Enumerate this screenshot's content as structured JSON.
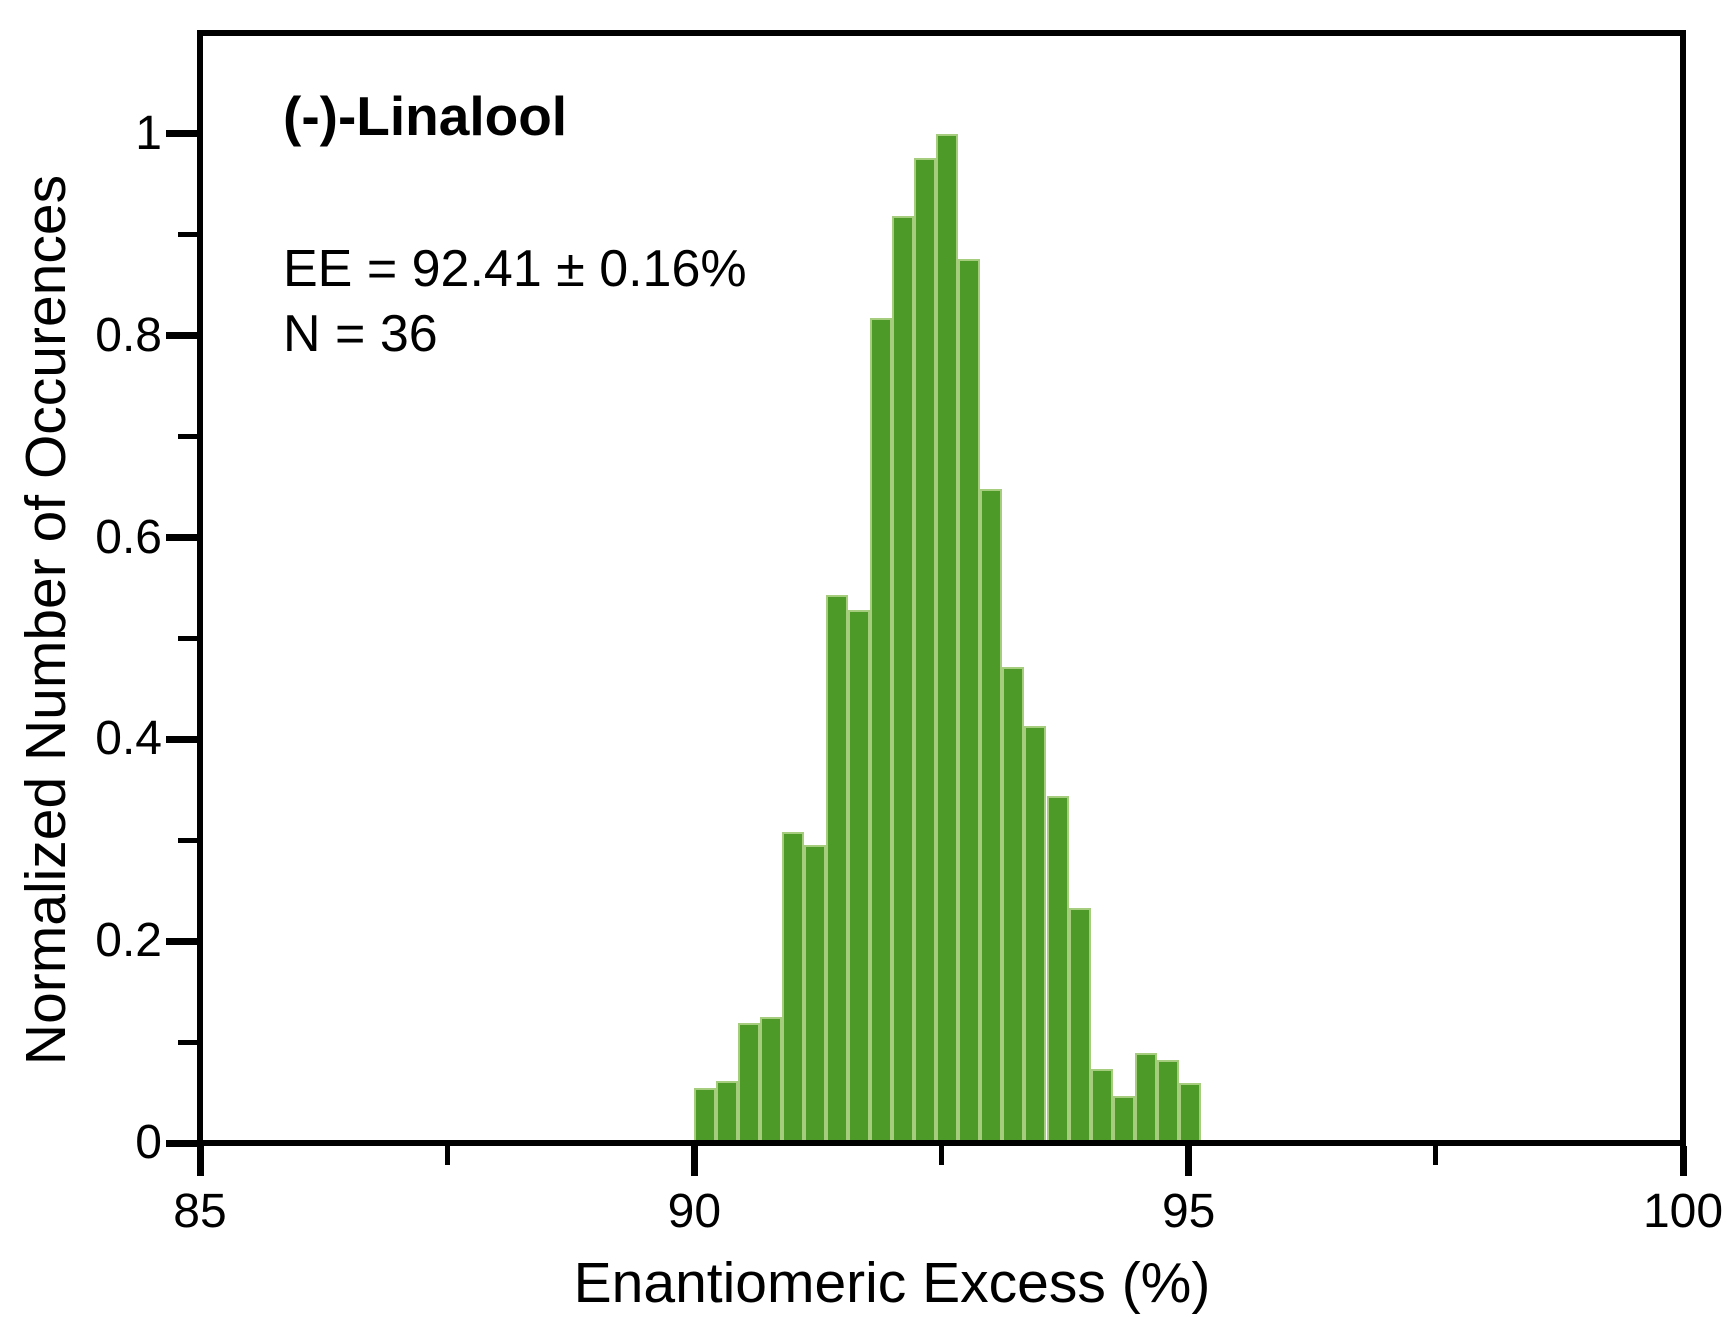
{
  "chart_data": {
    "type": "bar",
    "title": "(-)-Linalool",
    "annotation": {
      "ee_line": "EE = 92.41 ± 0.16%",
      "n_line": "N = 36"
    },
    "xlabel": "Enantiomeric Excess (%)",
    "ylabel": "Normalized Number of Occurences",
    "xlim": [
      85,
      100
    ],
    "ylim": [
      0,
      1.1
    ],
    "x_major_ticks": [
      85,
      90,
      95,
      100
    ],
    "x_minor_ticks": [
      87.5,
      92.5,
      97.5
    ],
    "y_major_ticks": [
      0,
      0.2,
      0.4,
      0.6,
      0.8,
      1
    ],
    "y_minor_ticks": [
      0.1,
      0.3,
      0.5,
      0.7,
      0.9
    ],
    "grid": false,
    "legend": "none",
    "histogram": {
      "n_bins": 23,
      "bin_start": 90.0,
      "bin_width": 0.2226,
      "values": [
        0.055,
        0.061,
        0.119,
        0.125,
        0.308,
        0.295,
        0.543,
        0.528,
        0.818,
        0.919,
        0.976,
        1.0,
        0.876,
        0.648,
        0.472,
        0.413,
        0.344,
        0.233,
        0.073,
        0.047,
        0.089,
        0.082,
        0.06
      ]
    },
    "colors": {
      "bar_fill": "#4e9a28",
      "bar_border": "#a6cd7e",
      "axis": "#000000",
      "text": "#000000",
      "background": "#ffffff"
    }
  }
}
